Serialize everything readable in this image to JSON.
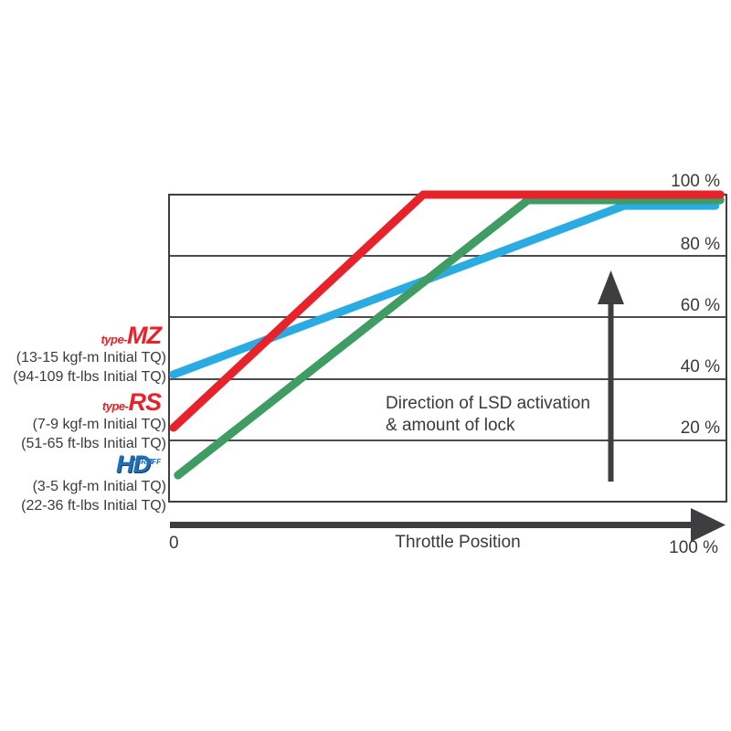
{
  "axis": {
    "y_tick_labels": [
      "100 %",
      "80 %",
      "60 %",
      "40 %",
      "20 %"
    ],
    "x_min_label": "0",
    "x_max_label": "100 %",
    "x_title": "Throttle Position"
  },
  "annotation": {
    "line1": "Direction of LSD activation",
    "line2": "& amount of lock"
  },
  "colors": {
    "red": "#e8222a",
    "green": "#3f9c63",
    "cyan": "#2aace2",
    "blue_logo": "#1c6fb8",
    "axis_dark": "#3e3e40"
  },
  "legend": [
    {
      "prefix": "type-",
      "name": "MZ",
      "color": "#e8222a",
      "tq1": "(13-15 kgf-m Initial TQ)",
      "tq2": "(94-109 ft-lbs Initial TQ)"
    },
    {
      "prefix": "type-",
      "name": "RS",
      "color": "#e8222a",
      "tq1": "(7-9 kgf-m Initial TQ)",
      "tq2": "(51-65 ft-lbs Initial TQ)"
    },
    {
      "name": "HD",
      "sup": "YBRID",
      "suffix": "IFF",
      "color": "#1c6fb8",
      "tq1": "(3-5 kgf-m Initial TQ)",
      "tq2": "(22-36 ft-lbs Initial TQ)"
    }
  ],
  "chart_data": {
    "type": "line",
    "title": "",
    "xlabel": "Throttle Position",
    "ylabel": "LSD activation / amount of lock (%)",
    "xlim": [
      0,
      100
    ],
    "ylim": [
      0,
      100
    ],
    "grid": "horizontal",
    "y_gridlines": [
      20,
      40,
      60,
      80
    ],
    "series": [
      {
        "name": "type-MZ",
        "color": "#2aace2",
        "points": [
          [
            0.8,
            41.4
          ],
          [
            81.6,
            96.4
          ],
          [
            98.0,
            96.4
          ]
        ]
      },
      {
        "name": "Hybrid-HD",
        "color": "#3f9c63",
        "points": [
          [
            1.6,
            8.6
          ],
          [
            64.4,
            98.2
          ],
          [
            98.9,
            98.2
          ]
        ]
      },
      {
        "name": "type-RS",
        "color": "#e8222a",
        "points": [
          [
            0.8,
            24.1
          ],
          [
            45.6,
            100
          ],
          [
            98.9,
            100
          ]
        ]
      }
    ]
  }
}
